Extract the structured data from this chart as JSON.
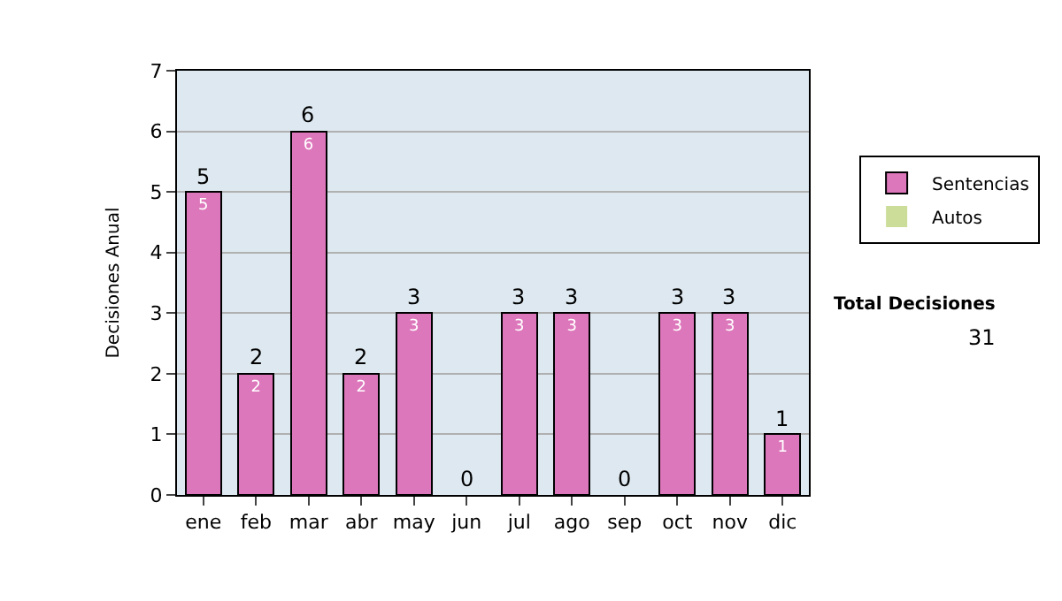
{
  "chart_data": {
    "type": "bar",
    "stacked": true,
    "ylabel": "Decisiones Anual",
    "categories": [
      "ene",
      "feb",
      "mar",
      "abr",
      "may",
      "jun",
      "jul",
      "ago",
      "sep",
      "oct",
      "nov",
      "dic"
    ],
    "series": [
      {
        "name": "Sentencias",
        "color": "#dd77bb",
        "values": [
          5,
          2,
          6,
          2,
          3,
          0,
          3,
          3,
          0,
          3,
          3,
          1
        ],
        "value_labels": [
          "5",
          "2",
          "6",
          "2",
          "3",
          null,
          "3",
          "3",
          null,
          "3",
          "3",
          "1"
        ]
      },
      {
        "name": "Autos",
        "color": "#ccdd99",
        "values": [
          0,
          0,
          0,
          0,
          0,
          0,
          0,
          0,
          0,
          0,
          0,
          0
        ]
      }
    ],
    "totals": [
      "5",
      "2",
      "6",
      "2",
      "3",
      "0",
      "3",
      "3",
      "0",
      "3",
      "3",
      "1"
    ],
    "ylim": [
      0,
      7
    ],
    "yticks": [
      0,
      1,
      2,
      3,
      4,
      5,
      6,
      7
    ],
    "grid": "y",
    "legend": "right",
    "annotations": [
      "Total Decisiones",
      "31"
    ]
  }
}
